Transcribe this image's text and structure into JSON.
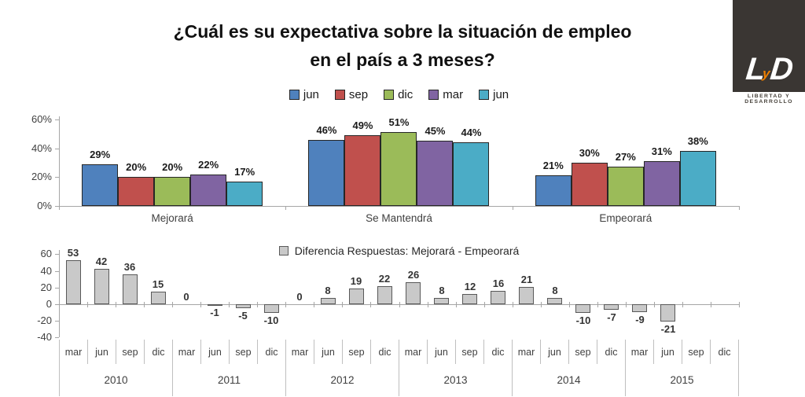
{
  "title": {
    "line1": "¿Cuál es su expectativa sobre la situación de empleo",
    "line2": "en el país a 3 meses?"
  },
  "logo": {
    "letter_l": "L",
    "letter_y": "y",
    "letter_d": "D",
    "caption": "LIBERTAD Y DESARROLLO",
    "box_color": "#3a3633",
    "accent_color": "#ee7f00"
  },
  "chart_data": [
    {
      "type": "bar",
      "title": "¿Cuál es su expectativa sobre la situación de empleo en el país a 3 meses?",
      "categories": [
        "Mejorará",
        "Se Mantendrá",
        "Empeorará"
      ],
      "series": [
        {
          "name": "jun",
          "color": "#4f81bd",
          "values": [
            29,
            46,
            21
          ]
        },
        {
          "name": "sep",
          "color": "#c0504d",
          "values": [
            20,
            49,
            30
          ]
        },
        {
          "name": "dic",
          "color": "#9bbb59",
          "values": [
            20,
            51,
            27
          ]
        },
        {
          "name": "mar",
          "color": "#8064a2",
          "values": [
            22,
            45,
            31
          ]
        },
        {
          "name": "jun",
          "color": "#4bacc6",
          "values": [
            17,
            44,
            38
          ]
        }
      ],
      "unit": "%",
      "ylim": [
        0,
        60
      ],
      "yticks": [
        60,
        40,
        20,
        0
      ],
      "legend_position": "top",
      "grid": false,
      "value_labels": "outside-end"
    },
    {
      "type": "bar",
      "legend": "Diferencia Respuestas:  Mejorará - Empeorará",
      "bar_color": "#c9c9c9",
      "bar_border": "#595959",
      "ylim": [
        -40,
        60
      ],
      "yticks": [
        60,
        40,
        20,
        0,
        -20,
        -40
      ],
      "years": [
        "2010",
        "2011",
        "2012",
        "2013",
        "2014",
        "2015"
      ],
      "months": [
        "mar",
        "jun",
        "sep",
        "dic"
      ],
      "values": [
        53,
        42,
        36,
        15,
        0,
        -1,
        -5,
        -10,
        0,
        8,
        19,
        22,
        26,
        8,
        12,
        16,
        21,
        8,
        -10,
        -7,
        -9,
        -21,
        null,
        null
      ],
      "grid": false,
      "value_labels": "outside-end",
      "legend_position": "top-inside"
    }
  ]
}
